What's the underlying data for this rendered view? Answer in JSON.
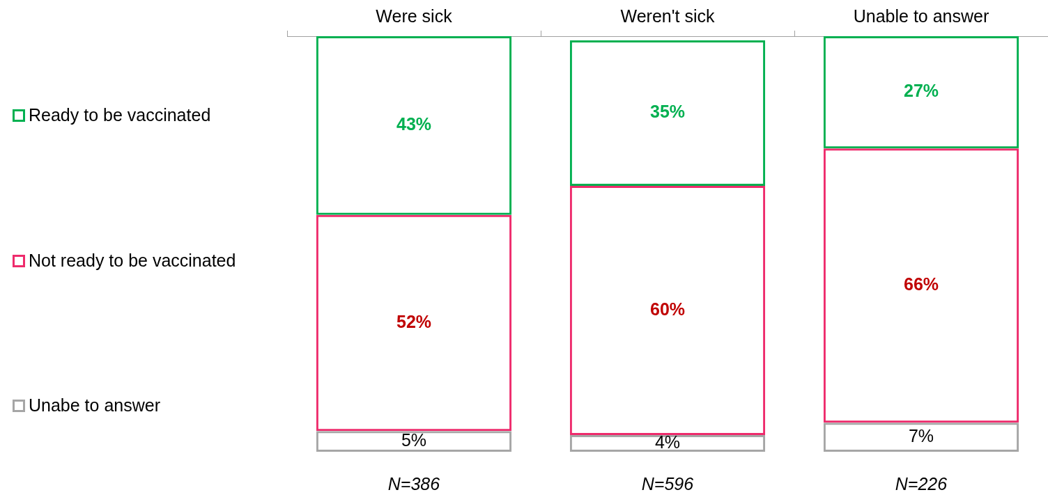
{
  "chart_data": {
    "type": "bar",
    "stacked": true,
    "categories": [
      "Were sick",
      "Weren't sick",
      "Unable to answer"
    ],
    "series": [
      {
        "name": "Unabe to answer",
        "color": "#a6a6a6",
        "values": [
          5,
          4,
          7
        ],
        "value_labels": [
          "5%",
          "4%",
          "7%"
        ]
      },
      {
        "name": "Not ready to be vaccinated",
        "color": "#ee2b6c",
        "values": [
          52,
          60,
          66
        ],
        "value_labels": [
          "52%",
          "60%",
          "66%"
        ]
      },
      {
        "name": "Ready to be vaccinated",
        "color": "#00b050",
        "values": [
          43,
          35,
          27
        ],
        "value_labels": [
          "43%",
          "35%",
          "27%"
        ]
      }
    ],
    "legend": "left",
    "grid": false,
    "annotations": [
      "N=386",
      "N=596",
      "N=226"
    ]
  }
}
